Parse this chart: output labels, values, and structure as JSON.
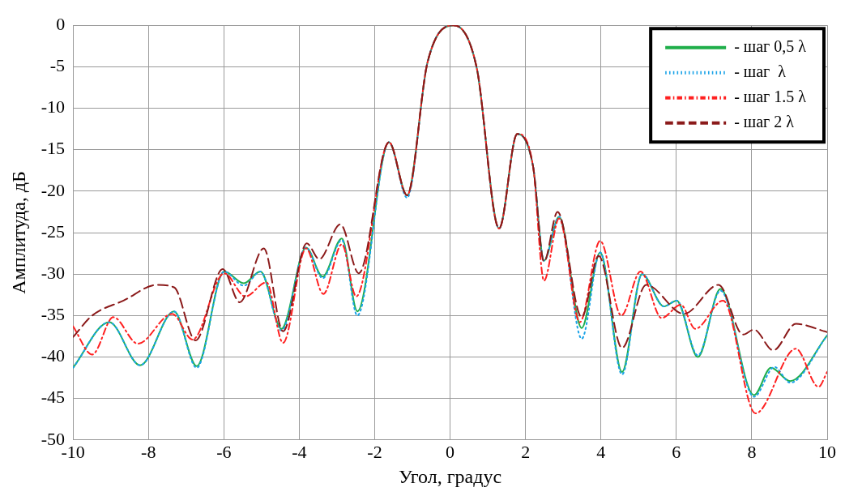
{
  "chart_data": {
    "type": "line",
    "xlabel": "Угол, градус",
    "ylabel": "Амплитуда, дБ",
    "xlim": [
      -10,
      10
    ],
    "xticks": [
      -10,
      -8,
      -6,
      -4,
      -2,
      0,
      2,
      4,
      6,
      8,
      10
    ],
    "ylim": [
      -50,
      0
    ],
    "yticks": [
      0,
      -5,
      -10,
      -15,
      -20,
      -25,
      -30,
      -35,
      -40,
      -45,
      -50
    ],
    "grid": true,
    "legend": "top right",
    "marker": "none",
    "series": [
      {
        "name": "- шаг 0,5 λ",
        "color": "#1fae4a",
        "line_style": "solid",
        "x": [
          -10,
          -9.04,
          -8.22,
          -7.32,
          -6.72,
          -5.99,
          -5.47,
          -5.03,
          -4.47,
          -3.82,
          -3.38,
          -2.87,
          -2.46,
          -1.62,
          -1.14,
          -0.6,
          0.09,
          0.7,
          1.3,
          1.78,
          2.2,
          2.49,
          2.89,
          3.49,
          3.98,
          4.56,
          5.09,
          5.67,
          6.01,
          6.57,
          7.17,
          8.06,
          8.51,
          9.02,
          10
        ],
        "values": [
          -41.3,
          -35.8,
          -41,
          -34.5,
          -41.1,
          -29.7,
          -31.1,
          -29.7,
          -36.6,
          -26.8,
          -30.3,
          -25.7,
          -34.5,
          -14.1,
          -20.5,
          -4.5,
          0,
          -5,
          -24.5,
          -13.1,
          -17,
          -28.4,
          -23.1,
          -36.5,
          -27.4,
          -41.8,
          -30,
          -33.9,
          -33.2,
          -40,
          -31.8,
          -44.6,
          -41.3,
          -42.9,
          -37.4
        ]
      },
      {
        "name": "- шаг  λ",
        "color": "#1aa3e8",
        "line_style": "dotted",
        "x": [
          -10,
          -9.04,
          -8.22,
          -7.32,
          -6.72,
          -5.99,
          -5.47,
          -5.03,
          -4.47,
          -3.82,
          -3.38,
          -2.87,
          -2.46,
          -1.62,
          -1.14,
          -0.6,
          0.09,
          0.7,
          1.3,
          1.78,
          2.2,
          2.49,
          2.89,
          3.49,
          3.98,
          4.56,
          5.09,
          5.67,
          6.01,
          6.57,
          7.17,
          8.06,
          8.6,
          9.02,
          10
        ],
        "values": [
          -41.3,
          -35.8,
          -41,
          -34.5,
          -41.3,
          -29.7,
          -31.4,
          -29.7,
          -36.8,
          -26.8,
          -30.5,
          -25.9,
          -35,
          -14.1,
          -20.8,
          -4.5,
          0,
          -5,
          -24.5,
          -13.1,
          -17,
          -28.4,
          -23.1,
          -37.8,
          -27.4,
          -42.1,
          -30,
          -33.9,
          -33.2,
          -39.8,
          -32,
          -44.8,
          -41.2,
          -43.1,
          -37.4
        ]
      },
      {
        "name": "- шаг 1.5 λ",
        "color": "#ff2020",
        "line_style": "dashdot",
        "x": [
          -10,
          -9.49,
          -8.93,
          -8.28,
          -7.37,
          -6.83,
          -5.99,
          -5.43,
          -4.87,
          -4.43,
          -3.82,
          -3.36,
          -2.87,
          -2.49,
          -1.62,
          -1.14,
          -0.6,
          0.09,
          0.7,
          1.3,
          1.78,
          2.2,
          2.49,
          2.89,
          3.44,
          3.98,
          4.54,
          5.05,
          5.61,
          6.12,
          6.5,
          7.24,
          8.1,
          9.17,
          9.77,
          10
        ],
        "values": [
          -36.3,
          -39.7,
          -35.2,
          -38.4,
          -34.8,
          -37.9,
          -29.9,
          -32.7,
          -31,
          -38.3,
          -26.9,
          -32.4,
          -26.4,
          -32.7,
          -14.1,
          -20.5,
          -4.5,
          0,
          -5,
          -24.5,
          -13.1,
          -17,
          -30.8,
          -23.3,
          -35.8,
          -26,
          -35,
          -29.7,
          -35.3,
          -33.7,
          -36.6,
          -33.2,
          -46.8,
          -39,
          -43.6,
          -41.8
        ]
      },
      {
        "name": "- шаг 2 λ",
        "color": "#8b1a1a",
        "line_style": "dashed",
        "x": [
          -10,
          -9.49,
          -8.66,
          -7.77,
          -7.32,
          -6.75,
          -6.03,
          -5.58,
          -4.94,
          -4.43,
          -3.8,
          -3.47,
          -2.91,
          -2.42,
          -1.62,
          -1.14,
          -0.6,
          0.09,
          0.7,
          1.3,
          1.78,
          2.2,
          2.49,
          2.85,
          3.49,
          3.94,
          4.56,
          5.2,
          6.2,
          7.12,
          7.77,
          8.06,
          8.57,
          9.17,
          10
        ],
        "values": [
          -37.6,
          -35,
          -33.2,
          -31.3,
          -31.6,
          -38,
          -29.4,
          -33.4,
          -26.9,
          -36.9,
          -26.3,
          -28.2,
          -24,
          -29.9,
          -14.1,
          -20.5,
          -4.5,
          0,
          -5,
          -24.5,
          -13.1,
          -17,
          -28.5,
          -22.5,
          -35.2,
          -27.8,
          -38.9,
          -31.3,
          -34.8,
          -31.3,
          -37.3,
          -36.7,
          -39.2,
          -36,
          -37
        ]
      }
    ]
  }
}
